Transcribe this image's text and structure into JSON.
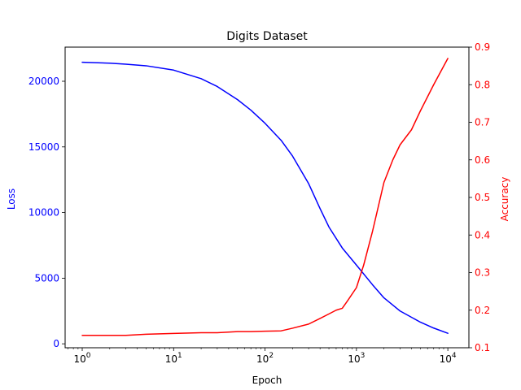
{
  "chart_data": {
    "type": "line",
    "title": "Digits Dataset",
    "xlabel": "Epoch",
    "x_scale": "log",
    "xlim": [
      0.65,
      17000
    ],
    "x_ticks": [
      1,
      10,
      100,
      1000,
      10000
    ],
    "x_tick_labels": [
      {
        "base": "10",
        "exp": "0"
      },
      {
        "base": "10",
        "exp": "1"
      },
      {
        "base": "10",
        "exp": "2"
      },
      {
        "base": "10",
        "exp": "3"
      },
      {
        "base": "10",
        "exp": "4"
      }
    ],
    "grid": false,
    "legend": "none",
    "left_axis": {
      "label": "Loss",
      "color": "#0000ff",
      "ylim": [
        -300,
        22600
      ],
      "ticks": [
        0,
        5000,
        10000,
        15000,
        20000
      ],
      "tick_labels": [
        "0",
        "5000",
        "10000",
        "15000",
        "20000"
      ]
    },
    "right_axis": {
      "label": "Accuracy",
      "color": "#ff0000",
      "ylim": [
        0.1,
        0.9
      ],
      "ticks": [
        0.1,
        0.2,
        0.3,
        0.4,
        0.5,
        0.6,
        0.7,
        0.8,
        0.9
      ],
      "tick_labels": [
        "0.1",
        "0.2",
        "0.3",
        "0.4",
        "0.5",
        "0.6",
        "0.7",
        "0.8",
        "0.9"
      ]
    },
    "series": [
      {
        "axis": "left",
        "color": "#0000ff",
        "x": [
          1,
          2,
          3,
          5,
          10,
          20,
          30,
          50,
          70,
          100,
          150,
          200,
          300,
          400,
          500,
          700,
          1000,
          1500,
          2000,
          3000,
          5000,
          7000,
          10000
        ],
        "values": [
          21450,
          21380,
          21300,
          21180,
          20850,
          20200,
          19600,
          18600,
          17800,
          16800,
          15500,
          14300,
          12200,
          10300,
          8900,
          7300,
          6000,
          4500,
          3500,
          2500,
          1650,
          1200,
          800
        ]
      },
      {
        "axis": "right",
        "color": "#ff0000",
        "x": [
          1,
          2,
          3,
          5,
          10,
          20,
          30,
          50,
          70,
          100,
          150,
          200,
          300,
          400,
          500,
          600,
          700,
          800,
          1000,
          1200,
          1500,
          2000,
          2500,
          3000,
          4000,
          5000,
          7000,
          10000
        ],
        "values": [
          0.133,
          0.133,
          0.133,
          0.136,
          0.138,
          0.14,
          0.14,
          0.143,
          0.143,
          0.144,
          0.145,
          0.152,
          0.163,
          0.178,
          0.19,
          0.2,
          0.205,
          0.225,
          0.26,
          0.32,
          0.41,
          0.54,
          0.6,
          0.64,
          0.68,
          0.73,
          0.8,
          0.87
        ]
      }
    ]
  }
}
